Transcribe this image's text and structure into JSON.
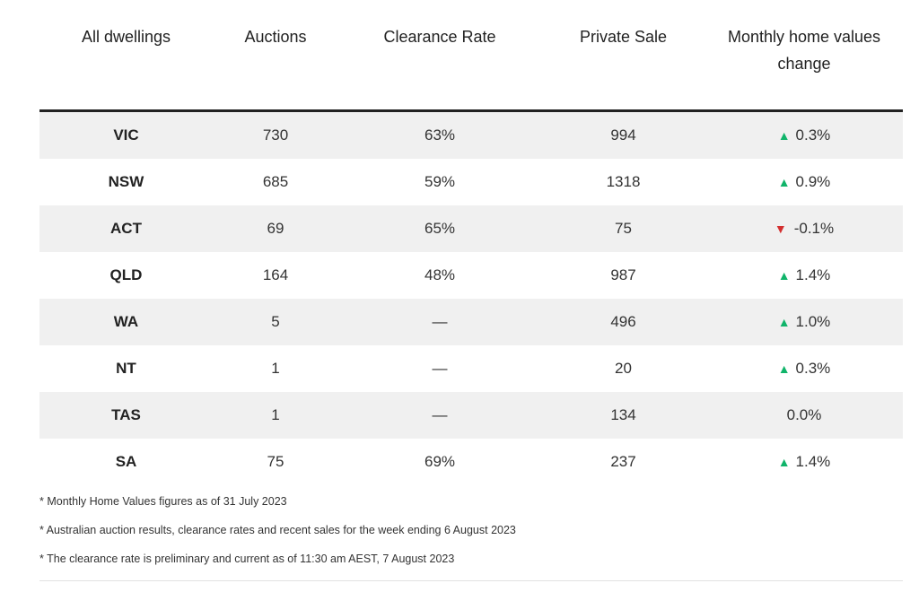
{
  "table": {
    "headers": [
      "All dwellings",
      "Auctions",
      "Clearance Rate",
      "Private Sale",
      "Monthly home values change"
    ],
    "rows": [
      {
        "state": "VIC",
        "auctions": "730",
        "clearance": "63%",
        "private": "994",
        "change": "0.3%",
        "dir": "up"
      },
      {
        "state": "NSW",
        "auctions": "685",
        "clearance": "59%",
        "private": "1318",
        "change": "0.9%",
        "dir": "up"
      },
      {
        "state": "ACT",
        "auctions": "69",
        "clearance": "65%",
        "private": "75",
        "change": "-0.1%",
        "dir": "down"
      },
      {
        "state": "QLD",
        "auctions": "164",
        "clearance": "48%",
        "private": "987",
        "change": "1.4%",
        "dir": "up"
      },
      {
        "state": "WA",
        "auctions": "5",
        "clearance": "—",
        "private": "496",
        "change": "1.0%",
        "dir": "up"
      },
      {
        "state": "NT",
        "auctions": "1",
        "clearance": "—",
        "private": "20",
        "change": "0.3%",
        "dir": "up"
      },
      {
        "state": "TAS",
        "auctions": "1",
        "clearance": "—",
        "private": "134",
        "change": "0.0%",
        "dir": "none"
      },
      {
        "state": "SA",
        "auctions": "75",
        "clearance": "69%",
        "private": "237",
        "change": "1.4%",
        "dir": "up"
      }
    ]
  },
  "notes": [
    "* Monthly Home Values figures as of 31 July 2023",
    "* Australian auction results, clearance rates and recent sales for the week ending 6 August 2023",
    "* The clearance rate is preliminary and current as of 11:30 am AEST, 7 August 2023"
  ],
  "icons": {
    "up": "triangle-up-icon",
    "down": "triangle-down-icon"
  },
  "colors": {
    "up": "#10b46a",
    "down": "#d32f2f",
    "stripe": "#f0f0f0"
  }
}
